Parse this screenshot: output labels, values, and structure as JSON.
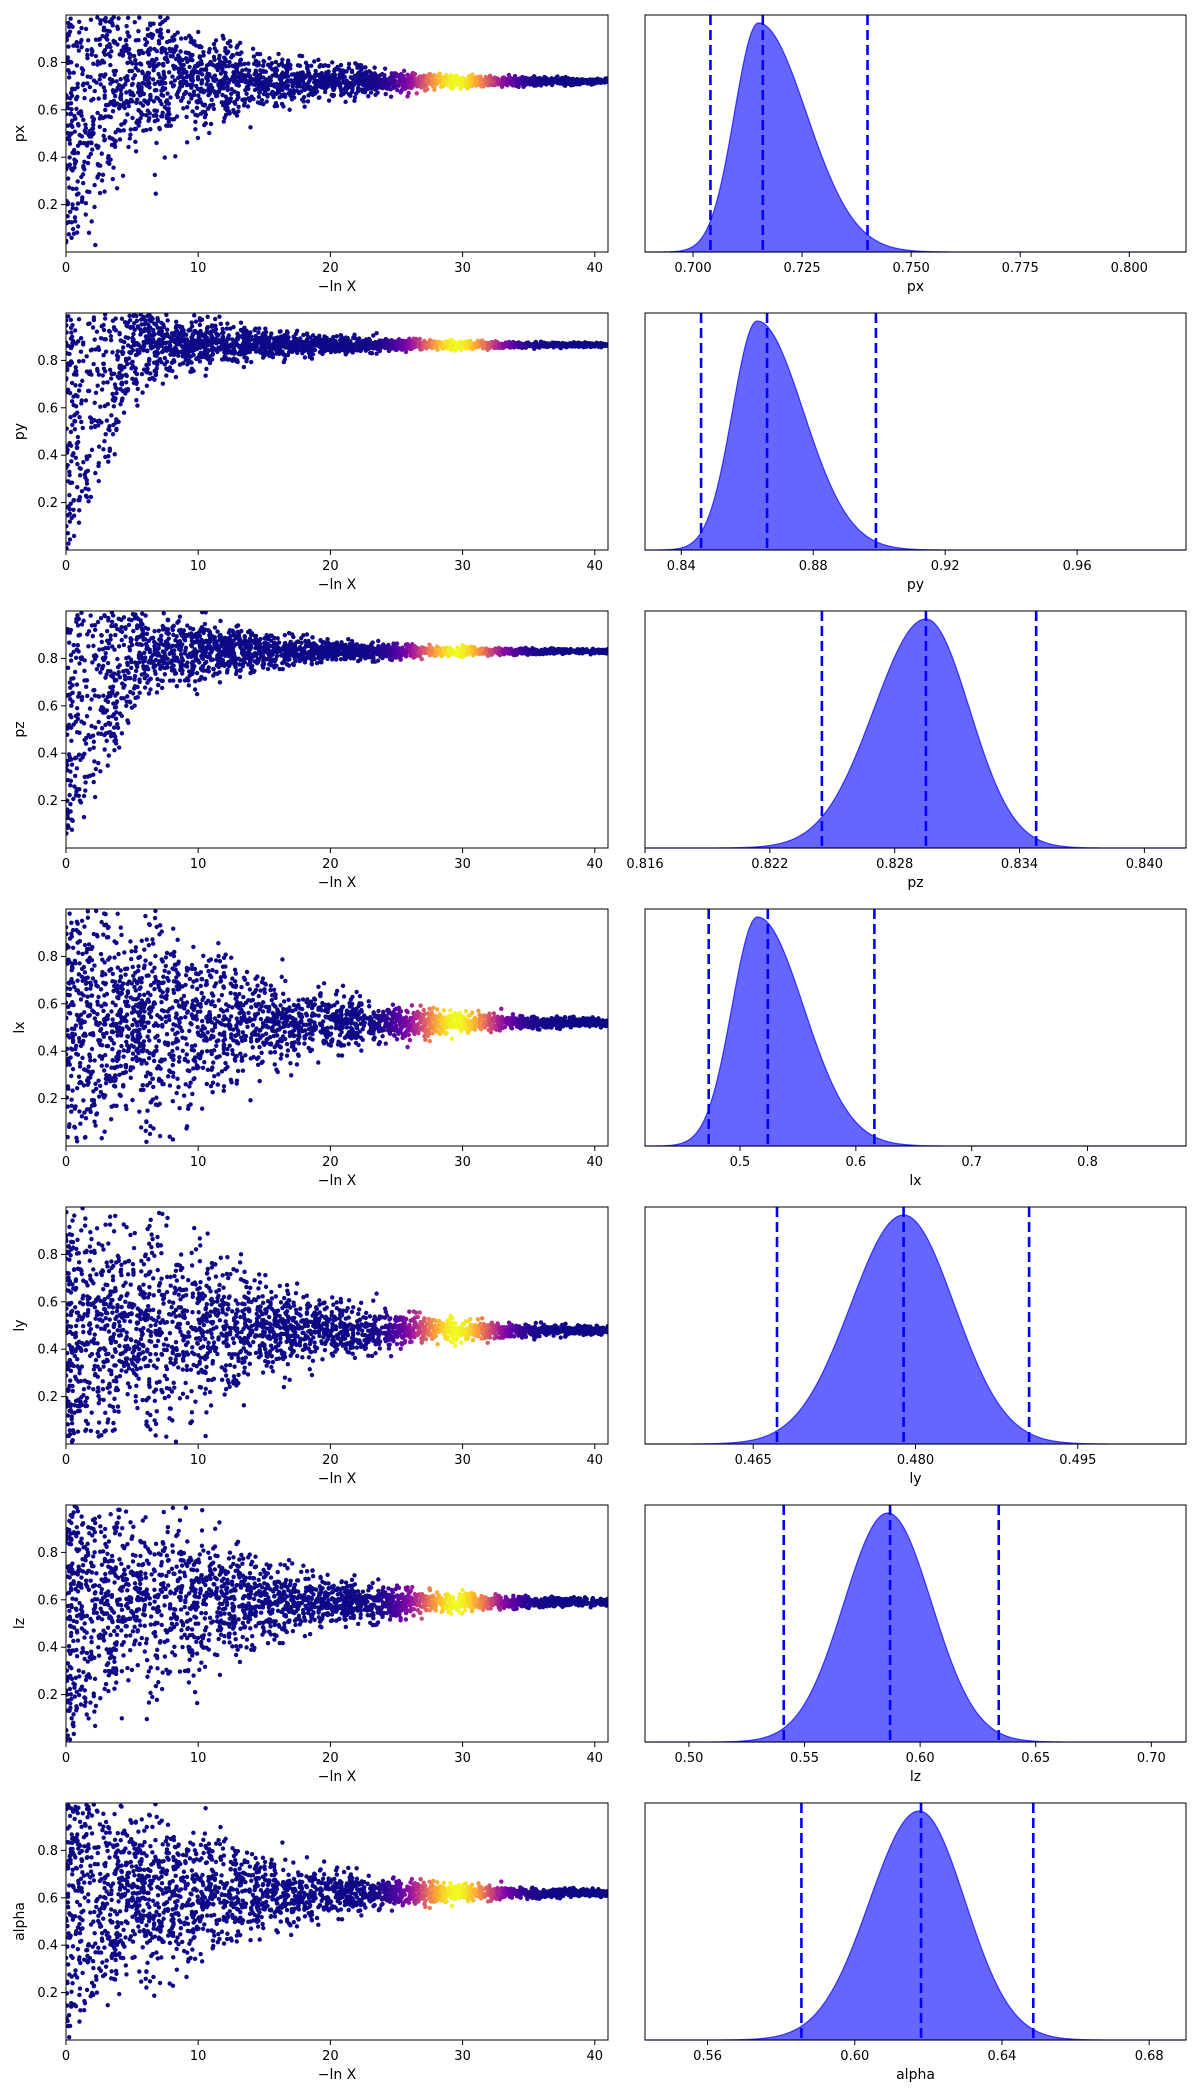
{
  "chart_data": [
    {
      "type": "scatter",
      "ylabel": "px",
      "xlabel": "−ln X",
      "xlim": [
        0,
        41
      ],
      "ylim": [
        0,
        1
      ],
      "xticks": [
        0,
        10,
        20,
        30,
        40
      ],
      "yticks": [
        0.2,
        0.4,
        0.6,
        0.8
      ],
      "converge_y": 0.72,
      "y_spread_max": 0.28,
      "y_floor_at_zero": 0.0,
      "bright_x": 29.5
    },
    {
      "type": "area",
      "xlabel": "px",
      "xlim": [
        0.689,
        0.813
      ],
      "xticks": [
        0.7,
        0.725,
        0.75,
        0.775,
        0.8
      ],
      "xtick_labels": [
        "0.700",
        "0.725",
        "0.750",
        "0.775",
        "0.800"
      ],
      "peak": 0.715,
      "sigma_left": 0.0055,
      "sigma_right": 0.011,
      "quantiles": [
        0.704,
        0.716,
        0.74
      ],
      "color": "#0000ff"
    },
    {
      "type": "scatter",
      "ylabel": "py",
      "xlabel": "−ln X",
      "xlim": [
        0,
        41
      ],
      "ylim": [
        0,
        1
      ],
      "xticks": [
        0,
        10,
        20,
        30,
        40
      ],
      "yticks": [
        0.2,
        0.4,
        0.6,
        0.8
      ],
      "converge_y": 0.865,
      "y_spread_max": 0.14,
      "y_floor_at_zero": 0.0,
      "bright_x": 29.5
    },
    {
      "type": "area",
      "xlabel": "py",
      "xlim": [
        0.829,
        0.993
      ],
      "xticks": [
        0.84,
        0.88,
        0.92,
        0.96
      ],
      "xtick_labels": [
        "0.84",
        "0.88",
        "0.92",
        "0.96"
      ],
      "peak": 0.863,
      "sigma_left": 0.0075,
      "sigma_right": 0.014,
      "quantiles": [
        0.846,
        0.866,
        0.899
      ],
      "color": "#0000ff"
    },
    {
      "type": "scatter",
      "ylabel": "pz",
      "xlabel": "−ln X",
      "xlim": [
        0,
        41
      ],
      "ylim": [
        0,
        1
      ],
      "xticks": [
        0,
        10,
        20,
        30,
        40
      ],
      "yticks": [
        0.2,
        0.4,
        0.6,
        0.8
      ],
      "converge_y": 0.83,
      "y_spread_max": 0.17,
      "y_floor_at_zero": 0.0,
      "bright_x": 29.5
    },
    {
      "type": "area",
      "xlabel": "pz",
      "xlim": [
        0.816,
        0.842
      ],
      "xticks": [
        0.816,
        0.822,
        0.828,
        0.834,
        0.84
      ],
      "xtick_labels": [
        "0.816",
        "0.822",
        "0.828",
        "0.834",
        "0.840"
      ],
      "peak": 0.8295,
      "sigma_left": 0.0025,
      "sigma_right": 0.0021,
      "quantiles": [
        0.8245,
        0.8295,
        0.8348
      ],
      "color": "#0000ff"
    },
    {
      "type": "scatter",
      "ylabel": "lx",
      "xlabel": "−ln X",
      "xlim": [
        0,
        41
      ],
      "ylim": [
        0,
        1
      ],
      "xticks": [
        0,
        10,
        20,
        30,
        40
      ],
      "yticks": [
        0.2,
        0.4,
        0.6,
        0.8
      ],
      "converge_y": 0.52,
      "y_spread_max": 0.48,
      "y_floor_at_zero": 0.0,
      "bright_x": 29.5
    },
    {
      "type": "area",
      "xlabel": "lx",
      "xlim": [
        0.418,
        0.885
      ],
      "xticks": [
        0.5,
        0.6,
        0.7,
        0.8
      ],
      "xtick_labels": [
        "0.5",
        "0.6",
        "0.7",
        "0.8"
      ],
      "peak": 0.515,
      "sigma_left": 0.022,
      "sigma_right": 0.04,
      "quantiles": [
        0.473,
        0.524,
        0.616
      ],
      "color": "#0000ff"
    },
    {
      "type": "scatter",
      "ylabel": "ly",
      "xlabel": "−ln X",
      "xlim": [
        0,
        41
      ],
      "ylim": [
        0,
        1
      ],
      "xticks": [
        0,
        10,
        20,
        30,
        40
      ],
      "yticks": [
        0.2,
        0.4,
        0.6,
        0.8
      ],
      "converge_y": 0.48,
      "y_spread_max": 0.5,
      "y_floor_at_zero": 0.0,
      "bright_x": 29.5
    },
    {
      "type": "area",
      "xlabel": "ly",
      "xlim": [
        0.455,
        0.505
      ],
      "xticks": [
        0.465,
        0.48,
        0.495
      ],
      "xtick_labels": [
        "0.465",
        "0.480",
        "0.495"
      ],
      "peak": 0.4789,
      "sigma_left": 0.0049,
      "sigma_right": 0.0047,
      "quantiles": [
        0.4672,
        0.4789,
        0.4905
      ],
      "color": "#0000ff"
    },
    {
      "type": "scatter",
      "ylabel": "lz",
      "xlabel": "−ln X",
      "xlim": [
        0,
        41
      ],
      "ylim": [
        0,
        1
      ],
      "xticks": [
        0,
        10,
        20,
        30,
        40
      ],
      "yticks": [
        0.2,
        0.4,
        0.6,
        0.8
      ],
      "converge_y": 0.59,
      "y_spread_max": 0.41,
      "y_floor_at_zero": 0.0,
      "bright_x": 29.5
    },
    {
      "type": "area",
      "xlabel": "lz",
      "xlim": [
        0.481,
        0.715
      ],
      "xticks": [
        0.5,
        0.55,
        0.6,
        0.65,
        0.7
      ],
      "xtick_labels": [
        "0.50",
        "0.55",
        "0.60",
        "0.65",
        "0.70"
      ],
      "peak": 0.586,
      "sigma_left": 0.019,
      "sigma_right": 0.019,
      "quantiles": [
        0.541,
        0.587,
        0.634
      ],
      "color": "#0000ff"
    },
    {
      "type": "scatter",
      "ylabel": "alpha",
      "xlabel": "−ln X",
      "xlim": [
        0,
        41
      ],
      "ylim": [
        0,
        1
      ],
      "xticks": [
        0,
        10,
        20,
        30,
        40
      ],
      "yticks": [
        0.2,
        0.4,
        0.6,
        0.8
      ],
      "converge_y": 0.62,
      "y_spread_max": 0.38,
      "y_floor_at_zero": 0.0,
      "bright_x": 29.5
    },
    {
      "type": "area",
      "xlabel": "alpha",
      "xlim": [
        0.543,
        0.69
      ],
      "xticks": [
        0.56,
        0.6,
        0.64,
        0.68
      ],
      "xtick_labels": [
        "0.56",
        "0.60",
        "0.64",
        "0.68"
      ],
      "peak": 0.6175,
      "sigma_left": 0.0135,
      "sigma_right": 0.0125,
      "quantiles": [
        0.5855,
        0.618,
        0.6485
      ],
      "color": "#0000ff"
    }
  ]
}
